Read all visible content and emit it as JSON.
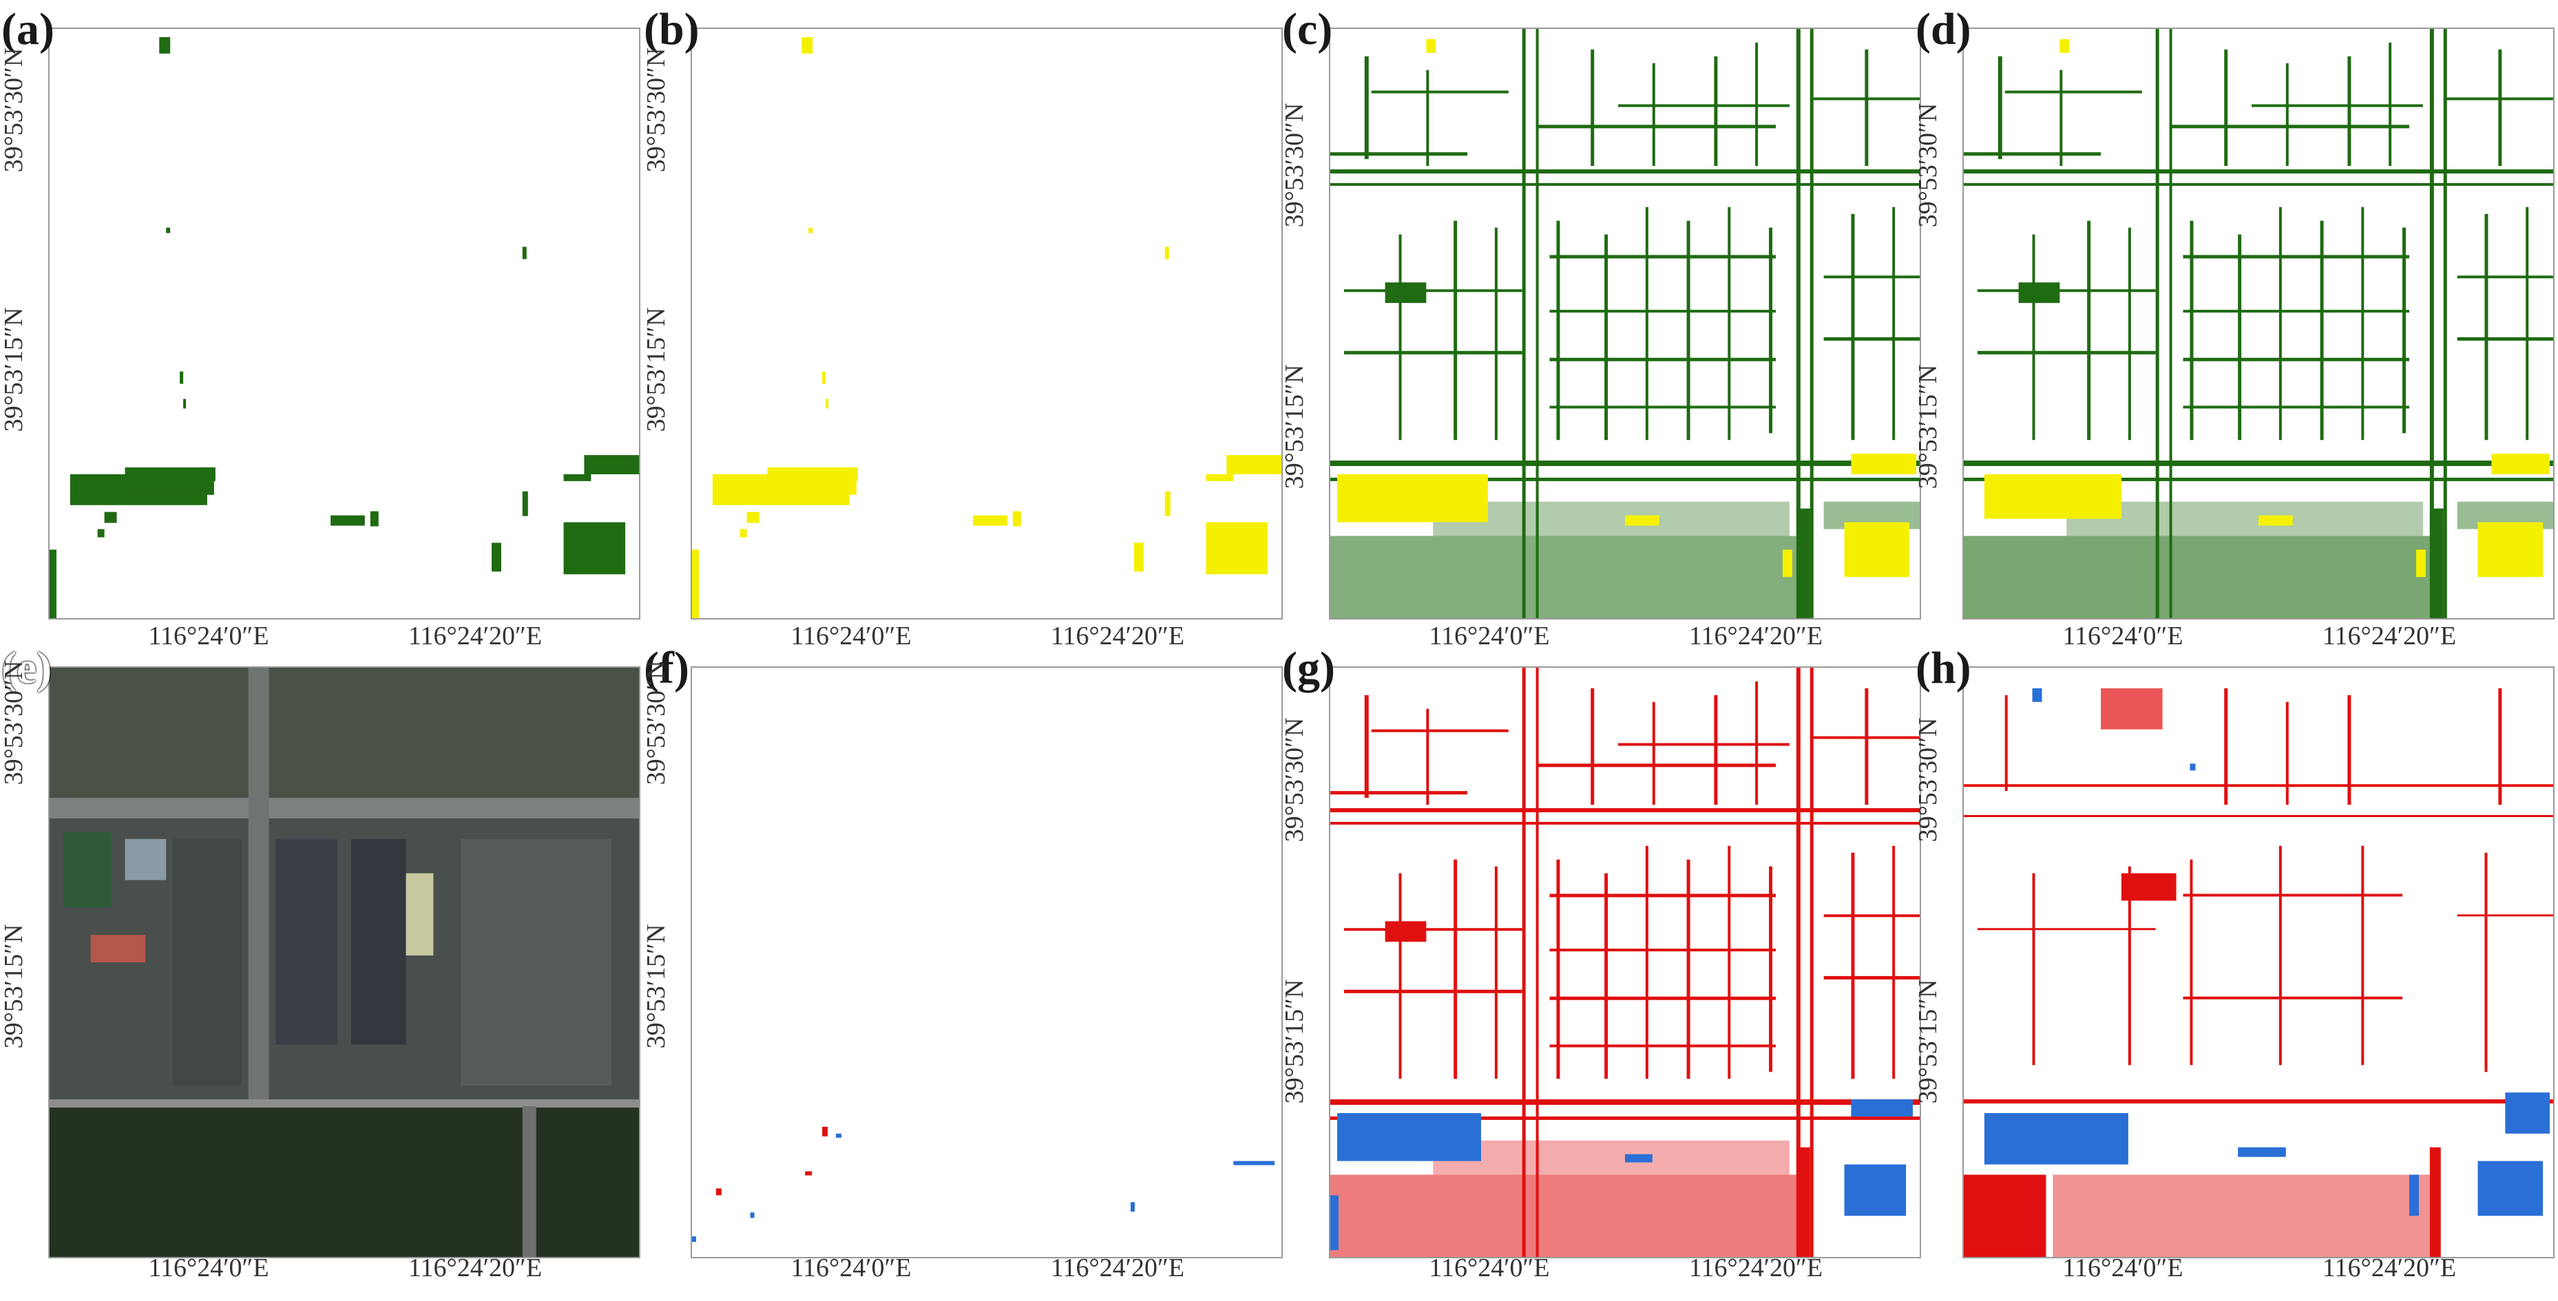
{
  "figure": {
    "panels": [
      {
        "letter": "(a)",
        "type": "class_map",
        "colors": [
          "#1f6b12"
        ],
        "lat_labels": [
          "39°53′30″N",
          "39°53′15″N"
        ],
        "lon_labels": [
          "116°24′0″E",
          "116°24′20″E"
        ]
      },
      {
        "letter": "(b)",
        "type": "class_map",
        "colors": [
          "#f5f000"
        ],
        "lat_labels": [
          "39°53′30″N",
          "39°53′15″N"
        ],
        "lon_labels": [
          "116°24′0″E",
          "116°24′20″E"
        ]
      },
      {
        "letter": "(c)",
        "type": "class_map",
        "colors": [
          "#1f6b12",
          "#f5f000"
        ],
        "lat_labels": [
          "39°53′30″N",
          "39°53′15″N"
        ],
        "lon_labels": [
          "116°24′0″E",
          "116°24′20″E"
        ]
      },
      {
        "letter": "(d)",
        "type": "class_map",
        "colors": [
          "#1f6b12",
          "#f5f000"
        ],
        "lat_labels": [
          "39°53′30″N",
          "39°53′15″N"
        ],
        "lon_labels": [
          "116°24′0″E",
          "116°24′20″E"
        ]
      },
      {
        "letter": "(e)",
        "type": "satellite_image",
        "colors": [
          "#3f4a44",
          "#24331f"
        ],
        "lat_labels": [
          "39°53′30″N",
          "39°53′15″N"
        ],
        "lon_labels": [
          "116°24′0″E",
          "116°24′20″E"
        ]
      },
      {
        "letter": "(f)",
        "type": "change_map",
        "colors": [
          "#e01010",
          "#2a6fd6"
        ],
        "lat_labels": [
          "39°53′30″N",
          "39°53′15″N"
        ],
        "lon_labels": [
          "116°24′0″E",
          "116°24′20″E"
        ]
      },
      {
        "letter": "(g)",
        "type": "change_map",
        "colors": [
          "#e01010",
          "#2a6fd6"
        ],
        "lat_labels": [
          "39°53′30″N",
          "39°53′15″N"
        ],
        "lon_labels": [
          "116°24′0″E",
          "116°24′20″E"
        ]
      },
      {
        "letter": "(h)",
        "type": "change_map",
        "colors": [
          "#e01010",
          "#2a6fd6"
        ],
        "lat_labels": [
          "39°53′30″N",
          "39°53′15″N"
        ],
        "lon_labels": [
          "116°24′0″E",
          "116°24′20″E"
        ]
      }
    ]
  }
}
